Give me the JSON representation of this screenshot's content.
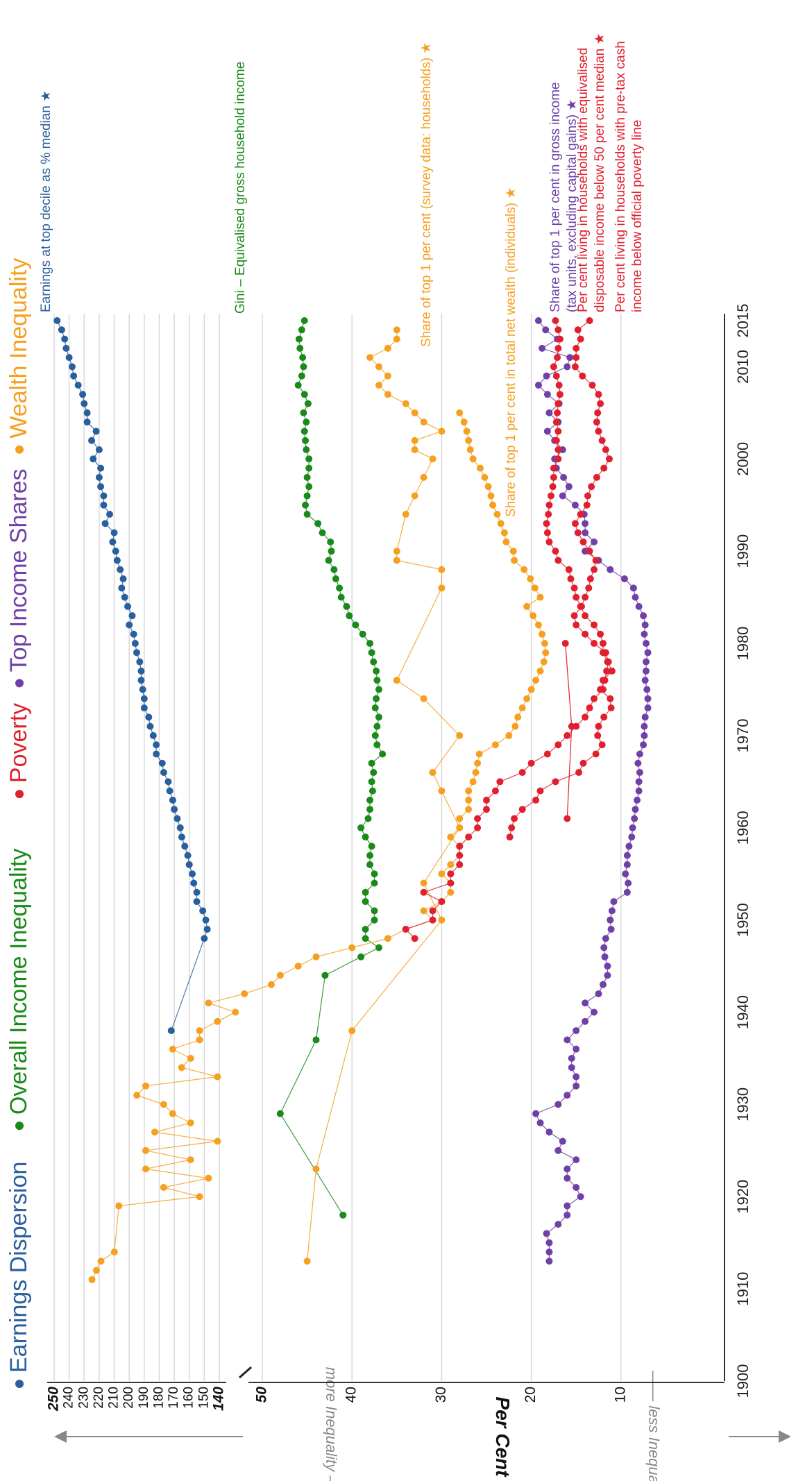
{
  "title_items": [
    {
      "label": "Earnings Dispersion",
      "color": "#2a5f9e"
    },
    {
      "label": "Overall Income Inequality",
      "color": "#1a8a1a"
    },
    {
      "label": "Poverty",
      "color": "#e0202e"
    },
    {
      "label": "Top Income Shares",
      "color": "#7040a8"
    },
    {
      "label": "Wealth Inequality",
      "color": "#f5a020"
    }
  ],
  "axis": {
    "year_ticks": [
      "1900",
      "1910",
      "1920",
      "1930",
      "1940",
      "1950",
      "1960",
      "1970",
      "1980",
      "1990",
      "2000",
      "2010",
      "2015"
    ],
    "earnings_ticks": [
      "250",
      "240",
      "230",
      "220",
      "210",
      "200",
      "190",
      "180",
      "170",
      "160",
      "150",
      "140"
    ],
    "percent_ticks": [
      "50",
      "40",
      "30",
      "20",
      "10"
    ],
    "percent_label": "Per Cent",
    "less_label": "less Inequality",
    "more_label": "more Inequality"
  },
  "chart_data": {
    "type": "line",
    "x_range": [
      1900,
      2015
    ],
    "earnings_range": [
      140,
      250
    ],
    "percent_range": [
      0,
      50
    ],
    "grid": true,
    "series": [
      {
        "name": "Earnings at top decile as % median",
        "star": true,
        "color": "#2a5f9e",
        "scale": "earnings",
        "x": [
          1938,
          1948,
          1949,
          1950,
          1951,
          1952,
          1953,
          1954,
          1955,
          1956,
          1957,
          1958,
          1959,
          1960,
          1961,
          1962,
          1963,
          1964,
          1965,
          1966,
          1967,
          1968,
          1969,
          1970,
          1971,
          1972,
          1973,
          1974,
          1975,
          1976,
          1977,
          1978,
          1979,
          1980,
          1981,
          1982,
          1983,
          1984,
          1985,
          1986,
          1987,
          1988,
          1989,
          1990,
          1991,
          1992,
          1993,
          1994,
          1995,
          1996,
          1997,
          1998,
          1999,
          2000,
          2001,
          2002,
          2003,
          2004,
          2005,
          2006,
          2007,
          2008,
          2009,
          2010,
          2011,
          2012,
          2013,
          2014,
          2015
        ],
        "y": [
          172,
          150,
          148,
          149,
          151,
          155,
          155,
          157,
          158,
          160,
          161,
          163,
          165,
          166,
          168,
          170,
          171,
          173,
          174,
          177,
          178,
          182,
          182,
          184,
          186,
          187,
          190,
          190,
          191,
          192,
          192,
          193,
          195,
          196,
          197,
          200,
          198,
          201,
          203,
          205,
          204,
          206,
          208,
          209,
          211,
          210,
          216,
          213,
          217,
          217,
          219,
          220,
          219,
          224,
          220,
          225,
          222,
          228,
          228,
          230,
          231,
          234,
          237,
          238,
          240,
          242,
          243,
          245,
          248
        ]
      },
      {
        "name": "Gini – Equivalised gross household income",
        "star": false,
        "color": "#1a8a1a",
        "scale": "percent",
        "x": [
          1918,
          1929,
          1937,
          1944,
          1946,
          1947,
          1948,
          1949,
          1950,
          1951,
          1952,
          1953,
          1954,
          1955,
          1956,
          1957,
          1958,
          1959,
          1960,
          1961,
          1962,
          1963,
          1964,
          1965,
          1966,
          1967,
          1968,
          1969,
          1970,
          1971,
          1972,
          1973,
          1974,
          1975,
          1976,
          1977,
          1978,
          1979,
          1980,
          1981,
          1982,
          1983,
          1984,
          1985,
          1986,
          1987,
          1988,
          1989,
          1990,
          1991,
          1992,
          1993,
          1994,
          1995,
          1996,
          1997,
          1998,
          1999,
          2000,
          2001,
          2002,
          2003,
          2004,
          2005,
          2006,
          2007,
          2008,
          2009,
          2010,
          2011,
          2012,
          2013,
          2014,
          2015
        ],
        "y": [
          41,
          48,
          44,
          43,
          39,
          37,
          38.5,
          38.5,
          37.5,
          37.5,
          38.5,
          38.5,
          37.5,
          37.5,
          38,
          38,
          37.8,
          38.5,
          39,
          38.2,
          38,
          38,
          37.7,
          37.8,
          37.6,
          37.8,
          36.6,
          37.2,
          37.4,
          37.2,
          37,
          37.4,
          37.3,
          37,
          37.2,
          37.3,
          37.6,
          37.8,
          38,
          38.8,
          39.6,
          40.3,
          40.6,
          41.2,
          41.4,
          41.8,
          42.0,
          42.6,
          42.3,
          42.4,
          43.3,
          43.8,
          45,
          45.2,
          45.0,
          44.8,
          45.0,
          44.8,
          44.8,
          45.1,
          45.2,
          45.3,
          45.1,
          45.4,
          44.9,
          45.3,
          46,
          45.6,
          45.4,
          45.5,
          45.8,
          45.9,
          45.6,
          45.3
        ]
      },
      {
        "name": "Share of top 1 per cent (survey data: households)",
        "star": true,
        "color": "#f5a020",
        "scale": "percent",
        "x": [
          1913,
          1923,
          1938,
          1950,
          1954,
          1960,
          1964,
          1966,
          1970,
          1974,
          1976,
          1986,
          1988,
          1989,
          1990,
          1994,
          1996,
          1998,
          2000,
          2001,
          2002,
          2003,
          2004,
          2005,
          2006,
          2007,
          2008,
          2009,
          2010,
          2011,
          2012,
          2013,
          2014
        ],
        "y": [
          45,
          44,
          40,
          30,
          32,
          28,
          30,
          31,
          28,
          32,
          35,
          30,
          30,
          35,
          35,
          34,
          33,
          32,
          31,
          33,
          33,
          30,
          32,
          33,
          34,
          36,
          37,
          36,
          37,
          38,
          36,
          35,
          35
        ]
      },
      {
        "name": "Share of top 1 per cent in total net wealth (individuals)",
        "star": true,
        "color": "#f5a020",
        "scale": "percent",
        "x": [
          1911,
          1912,
          1913,
          1914,
          1919,
          1920,
          1921,
          1922,
          1923,
          1924,
          1925,
          1926,
          1927,
          1928,
          1929,
          1930,
          1931,
          1932,
          1933,
          1934,
          1935,
          1936,
          1937,
          1938,
          1939,
          1940,
          1941,
          1942,
          1943,
          1944,
          1945,
          1946,
          1947,
          1948,
          1949,
          1950,
          1951,
          1952,
          1953,
          1954,
          1955,
          1956,
          1957,
          1958,
          1959,
          1960,
          1961,
          1962,
          1963,
          1964,
          1965,
          1966,
          1967,
          1968,
          1969,
          1970,
          1971,
          1972,
          1973,
          1974,
          1975,
          1976,
          1977,
          1978,
          1979,
          1980,
          1981,
          1982,
          1983,
          1984,
          1985,
          1986,
          1987,
          1988,
          1989,
          1990,
          1991,
          1992,
          1993,
          1994,
          1995,
          1996,
          1997,
          1998,
          1999,
          2000,
          2001,
          2002,
          2003,
          2004,
          2005
        ],
        "y": [
          69,
          68.5,
          68,
          66.5,
          66,
          57,
          61,
          56,
          63,
          58,
          63,
          55,
          62,
          58,
          60,
          61,
          64,
          63,
          55,
          59,
          58,
          60,
          57,
          57,
          55,
          53,
          56,
          52,
          49,
          48,
          46,
          44,
          40,
          36,
          34,
          31,
          32,
          30,
          29,
          29,
          30,
          29,
          28,
          28,
          29,
          28,
          28,
          27,
          27,
          27,
          26.5,
          26.2,
          26,
          25.8,
          24,
          22.5,
          21.8,
          21.5,
          21.0,
          20.5,
          20.0,
          19.5,
          19.0,
          18.6,
          18.4,
          18.5,
          18.8,
          19.2,
          19.8,
          20.5,
          19.0,
          19.6,
          20.1,
          20.8,
          21.9,
          22,
          22.8,
          23,
          23.4,
          23.8,
          24.3,
          24.5,
          24.8,
          25.2,
          25.7,
          26.5,
          26.8,
          27,
          27.2,
          27.5,
          28
        ]
      },
      {
        "name": "Share of top 1 per cent in gross income (tax units, excluding capital gains)",
        "star": true,
        "color": "#7040a8",
        "scale": "percent",
        "x": [
          1913,
          1914,
          1915,
          1916,
          1917,
          1918,
          1919,
          1920,
          1921,
          1922,
          1923,
          1924,
          1925,
          1926,
          1927,
          1928,
          1929,
          1930,
          1931,
          1932,
          1933,
          1934,
          1935,
          1936,
          1937,
          1938,
          1939,
          1940,
          1941,
          1942,
          1943,
          1944,
          1945,
          1946,
          1947,
          1948,
          1949,
          1950,
          1951,
          1952,
          1953,
          1954,
          1955,
          1956,
          1957,
          1958,
          1959,
          1960,
          1961,
          1962,
          1963,
          1964,
          1965,
          1966,
          1967,
          1968,
          1969,
          1970,
          1971,
          1972,
          1973,
          1974,
          1975,
          1976,
          1977,
          1978,
          1979,
          1980,
          1981,
          1982,
          1983,
          1984,
          1985,
          1986,
          1987,
          1988,
          1989,
          1990,
          1991,
          1992,
          1993,
          1994,
          1995,
          1996,
          1997,
          1998,
          1999,
          2000,
          2001,
          2002,
          2003,
          2004,
          2005,
          2006,
          2007,
          2008,
          2009,
          2010,
          2011,
          2012,
          2013,
          2014,
          2015
        ],
        "y": [
          18,
          18,
          18,
          18.3,
          17,
          16,
          16,
          14.5,
          15,
          16,
          16,
          15,
          17,
          16.5,
          18,
          19,
          19.5,
          17,
          16,
          15,
          15,
          15.5,
          15.5,
          15,
          16,
          15,
          14,
          13,
          14,
          12.5,
          12,
          11.5,
          11.5,
          11.8,
          11.9,
          11.7,
          11.1,
          11.2,
          11.0,
          10.8,
          9.3,
          9.2,
          9.5,
          9.3,
          9.3,
          9.1,
          8.8,
          8.7,
          8.5,
          8.4,
          8.2,
          8.0,
          8.0,
          7.9,
          8.1,
          7.9,
          7.5,
          7.4,
          7.4,
          7.3,
          7.0,
          7.0,
          7.1,
          7.3,
          7.2,
          7.2,
          7.0,
          7.2,
          7.4,
          7.3,
          7.5,
          8.0,
          8.4,
          8.6,
          9.6,
          11.2,
          12.5,
          14,
          13,
          14,
          14,
          14.1,
          15.1,
          16.5,
          15.8,
          16.4,
          17.2,
          17.4,
          16.5,
          17.4,
          18.2,
          17.0,
          18.0,
          16.9,
          18.2,
          19.2,
          18.3,
          16.0,
          15.7,
          18.8,
          17.1,
          18.4,
          19.2
        ]
      },
      {
        "name": "Per cent living in households with equivalised disposable income below 50 per cent median",
        "star": true,
        "color": "#e0202e",
        "scale": "percent",
        "x": [
          1948,
          1949,
          1950,
          1951,
          1952,
          1953,
          1954,
          1955,
          1956,
          1957,
          1958,
          1959,
          1960,
          1961,
          1962,
          1963,
          1964,
          1965,
          1966,
          1967,
          1968,
          1969,
          1970,
          1971,
          1972,
          1973,
          1974,
          1975,
          1976,
          1977,
          1978,
          1979,
          1980,
          1981,
          1982,
          1983,
          1984,
          1985,
          1986,
          1987,
          1988,
          1989,
          1990,
          1991,
          1992,
          1993,
          1994,
          1995,
          1996,
          1997,
          1998,
          1999,
          2000,
          2001,
          2002,
          2003,
          2004,
          2005,
          2006,
          2007,
          2008,
          2009,
          2010,
          2011,
          2012,
          2013,
          2014,
          2015
        ],
        "y": [
          33,
          34,
          31,
          31,
          30,
          32,
          29,
          29,
          28,
          28,
          28,
          27,
          26,
          26,
          25,
          25,
          24,
          23.5,
          21,
          20,
          18.2,
          17,
          16,
          15,
          14,
          13.5,
          13,
          12,
          12,
          11,
          11.5,
          12,
          12,
          12.3,
          13.0,
          14.0,
          14.5,
          15.0,
          15.2,
          15.6,
          15.8,
          17,
          17.3,
          18.0,
          18.2,
          18.3,
          18.1,
          18.0,
          17.8,
          17.6,
          17.5,
          17.5,
          17.0,
          17.0,
          17.2,
          17.0,
          17.2,
          17.1,
          17.0,
          16.8,
          16.9,
          17.2,
          17.5,
          17.1,
          17.0,
          16.8,
          17.0,
          17.3
        ]
      },
      {
        "name": "Per cent living in households with pre-tax cash income below official poverty line",
        "star": false,
        "color": "#e0202e",
        "scale": "percent",
        "x": [
          1959,
          1960,
          1961,
          1962,
          1963,
          1964,
          1965,
          1966,
          1967,
          1968,
          1969,
          1970,
          1971,
          1972,
          1973,
          1974,
          1975,
          1976,
          1977,
          1978,
          1979,
          1980,
          1981,
          1982,
          1983,
          1984,
          1985,
          1986,
          1987,
          1988,
          1989,
          1990,
          1991,
          1992,
          1993,
          1994,
          1995,
          1996,
          1997,
          1998,
          1999,
          2000,
          2001,
          2002,
          2003,
          2004,
          2005,
          2006,
          2007,
          2008,
          2009,
          2010,
          2011,
          2012,
          2013,
          2014,
          2015
        ],
        "y": [
          22.4,
          22.2,
          21.9,
          21.0,
          19.5,
          19.0,
          17.3,
          14.7,
          14.2,
          12.8,
          12.1,
          12.6,
          12.5,
          11.9,
          11.1,
          11.2,
          12.3,
          11.8,
          11.6,
          11.4,
          11.7,
          13.0,
          14.0,
          15.0,
          15.2,
          14.4,
          14.0,
          13.6,
          13.4,
          13.0,
          12.8,
          13.5,
          14.2,
          14.8,
          15.1,
          14.5,
          13.8,
          13.7,
          13.3,
          12.7,
          11.9,
          11.3,
          11.7,
          12.1,
          12.5,
          12.7,
          12.6,
          12.3,
          12.5,
          13.2,
          14.3,
          15.1,
          15.0,
          15.0,
          14.5,
          14.8,
          13.5
        ]
      }
    ],
    "extra_poverty_points": [
      {
        "x": 1961,
        "y": 16
      },
      {
        "x": 1971,
        "y": 15.5
      },
      {
        "x": 1980,
        "y": 16.2
      }
    ]
  }
}
